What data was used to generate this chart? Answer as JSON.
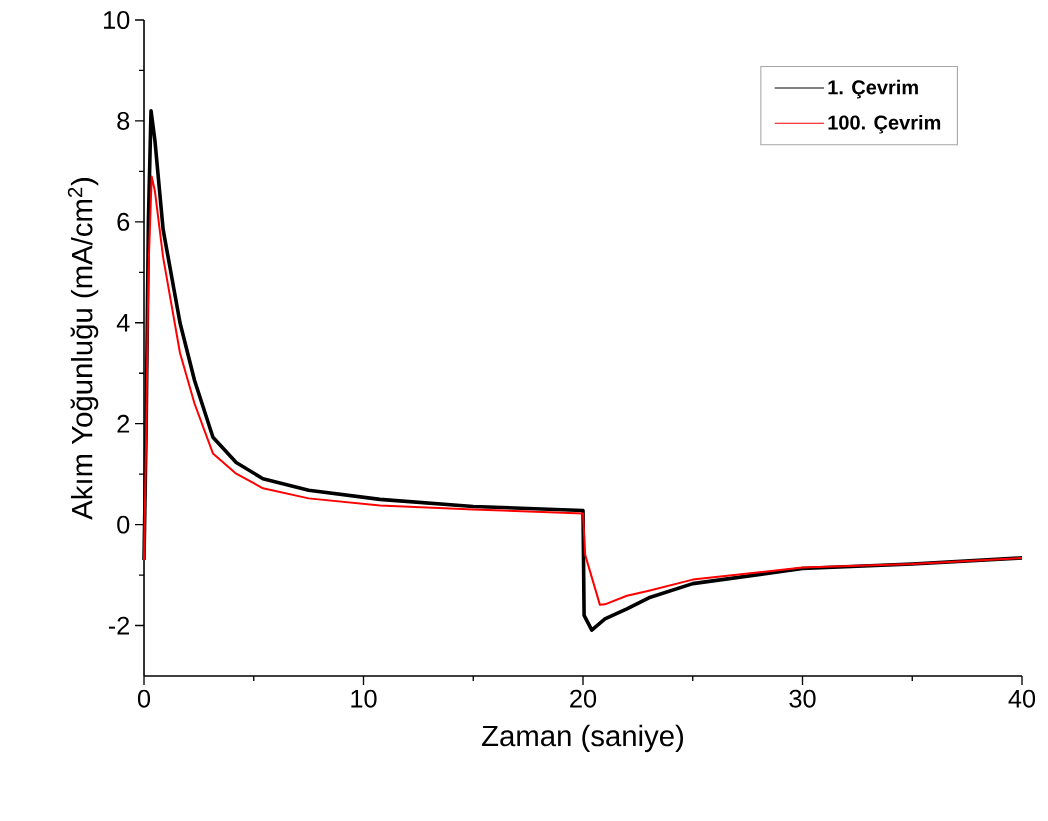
{
  "chart_data": {
    "type": "line",
    "xlabel": "Zaman (saniye)",
    "ylabel": "Akım Yoğunluğu (mA/cm$^{2}$)",
    "xlim": [
      0,
      40
    ],
    "ylim": [
      -3,
      10
    ],
    "xticks": [
      0,
      10,
      20,
      30,
      40
    ],
    "yticks": [
      -2,
      0,
      2,
      4,
      6,
      8,
      10
    ],
    "legend": "top right",
    "grid": false,
    "marker": "none",
    "line_style": "solid",
    "series": [
      {
        "name": "1.  Çevrim",
        "color": "#000000",
        "x": [
          0,
          0.1,
          0.2,
          0.32,
          0.5,
          0.87,
          1.64,
          2.3,
          3.14,
          4.2,
          5.42,
          7.5,
          10.75,
          15,
          20,
          20.05,
          20.4,
          21,
          22,
          23,
          25,
          30,
          35,
          40
        ],
        "values": [
          -0.7,
          2.0,
          6.0,
          8.2,
          7.6,
          5.85,
          4.0,
          2.86,
          1.73,
          1.23,
          0.91,
          0.68,
          0.5,
          0.36,
          0.28,
          -1.8,
          -2.09,
          -1.87,
          -1.67,
          -1.45,
          -1.17,
          -0.87,
          -0.78,
          -0.66
        ]
      },
      {
        "name": "100. Çevrim",
        "color": "#ff0000",
        "x": [
          0,
          0.1,
          0.2,
          0.35,
          0.5,
          0.87,
          1.64,
          2.3,
          3.14,
          4.2,
          5.42,
          7.5,
          10.75,
          15,
          20,
          20.1,
          20.77,
          21,
          22,
          23,
          25,
          30,
          35,
          40
        ],
        "values": [
          -0.7,
          1.8,
          5.0,
          6.9,
          6.6,
          5.3,
          3.4,
          2.4,
          1.41,
          1.01,
          0.72,
          0.52,
          0.38,
          0.3,
          0.22,
          -0.6,
          -1.59,
          -1.58,
          -1.41,
          -1.31,
          -1.09,
          -0.85,
          -0.78,
          -0.66
        ]
      }
    ]
  }
}
